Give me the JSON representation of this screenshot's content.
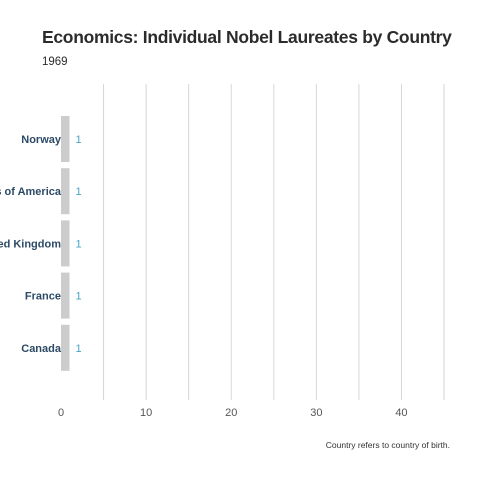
{
  "chart_data": {
    "type": "bar",
    "orientation": "horizontal",
    "title": "Economics: Individual Nobel Laureates by Country",
    "subtitle": "1969",
    "footnote": "Country refers to country of birth.",
    "categories": [
      "Norway",
      "United States of America",
      "United Kingdom",
      "France",
      "Canada"
    ],
    "values": [
      1,
      1,
      1,
      1,
      1
    ],
    "xlim": [
      0,
      45
    ],
    "xticks": [
      0,
      10,
      20,
      30,
      40
    ],
    "grid": true,
    "bar_color": "#cccccc",
    "value_label_color": "#4aa3c8",
    "category_label_color": "#2c4a66"
  }
}
